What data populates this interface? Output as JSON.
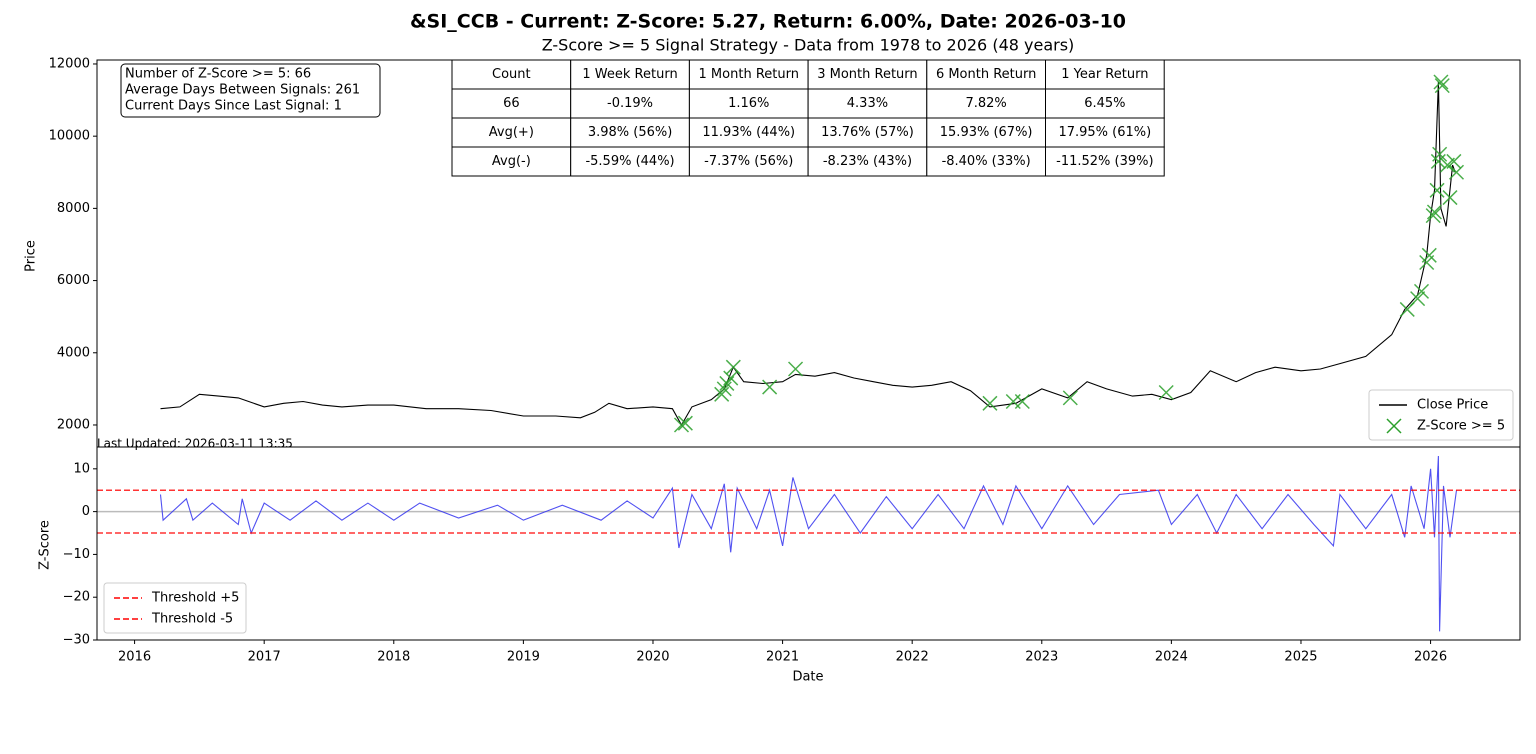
{
  "chart_data": [
    {
      "type": "line",
      "title": "&SI_CCB - Current: Z-Score: 5.27, Return: 6.00%, Date: 2026-03-10",
      "subtitle": "Z-Score >= 5 Signal Strategy - Data from 1978 to 2026 (48 years)",
      "ylabel": "Price",
      "xlim": [
        2015.71,
        2026.69
      ],
      "ylim": [
        1390,
        12110
      ],
      "yticks": [
        2000,
        4000,
        6000,
        8000,
        10000,
        12000
      ],
      "legend": "lower right",
      "annotation": [
        "Number of Z-Score >= 5: 66",
        "Average Days Between Signals: 261",
        "Current Days Since Last Signal: 1"
      ],
      "footnote": "Last Updated: 2026-03-11 13:35",
      "table": {
        "columns": [
          "Count",
          "1 Week Return",
          "1 Month Return",
          "3 Month Return",
          "6 Month Return",
          "1 Year Return"
        ],
        "rows": [
          [
            "66",
            "-0.19%",
            "1.16%",
            "4.33%",
            "7.82%",
            "6.45%"
          ],
          [
            "Avg(+)",
            "3.98% (56%)",
            "11.93% (44%)",
            "13.76% (57%)",
            "15.93% (67%)",
            "17.95% (61%)"
          ],
          [
            "Avg(-)",
            "-5.59% (44%)",
            "-7.37% (56%)",
            "-8.23% (43%)",
            "-8.40% (33%)",
            "-11.52% (39%)"
          ]
        ]
      },
      "series": [
        {
          "name": "Close Price",
          "type": "line",
          "color": "#000000",
          "x": [
            2016.2,
            2016.35,
            2016.5,
            2016.65,
            2016.8,
            2017.0,
            2017.15,
            2017.3,
            2017.45,
            2017.6,
            2017.8,
            2018.0,
            2018.25,
            2018.5,
            2018.75,
            2019.0,
            2019.25,
            2019.44,
            2019.55,
            2019.66,
            2019.8,
            2020.0,
            2020.15,
            2020.22,
            2020.3,
            2020.45,
            2020.55,
            2020.62,
            2020.7,
            2020.85,
            2021.0,
            2021.1,
            2021.25,
            2021.4,
            2021.55,
            2021.7,
            2021.85,
            2022.0,
            2022.15,
            2022.3,
            2022.45,
            2022.6,
            2022.8,
            2023.0,
            2023.2,
            2023.35,
            2023.5,
            2023.7,
            2023.85,
            2024.0,
            2024.15,
            2024.3,
            2024.5,
            2024.65,
            2024.8,
            2025.0,
            2025.15,
            2025.3,
            2025.5,
            2025.7,
            2025.8,
            2025.9,
            2025.97,
            2026.0,
            2026.03,
            2026.06,
            2026.08,
            2026.12,
            2026.17,
            2026.19
          ],
          "values": [
            2450,
            2500,
            2850,
            2800,
            2750,
            2500,
            2600,
            2650,
            2550,
            2500,
            2550,
            2550,
            2450,
            2450,
            2400,
            2250,
            2250,
            2200,
            2350,
            2600,
            2450,
            2500,
            2450,
            2000,
            2500,
            2700,
            3000,
            3600,
            3200,
            3150,
            3200,
            3400,
            3350,
            3450,
            3300,
            3200,
            3100,
            3050,
            3100,
            3200,
            2950,
            2500,
            2600,
            3000,
            2750,
            3200,
            3000,
            2800,
            2850,
            2700,
            2900,
            3500,
            3200,
            3450,
            3600,
            3500,
            3550,
            3700,
            3900,
            4500,
            5200,
            5600,
            6700,
            7800,
            8500,
            11500,
            8000,
            7500,
            9200,
            9000
          ]
        },
        {
          "name": "Z-Score >= 5",
          "type": "scatter",
          "color": "#2ca02c",
          "x": [
            2020.22,
            2020.25,
            2020.53,
            2020.55,
            2020.57,
            2020.6,
            2020.62,
            2020.9,
            2021.1,
            2022.6,
            2022.78,
            2022.85,
            2023.22,
            2023.96,
            2025.82,
            2025.9,
            2025.93,
            2025.97,
            2025.99,
            2026.02,
            2026.03,
            2026.05,
            2026.06,
            2026.07,
            2026.08,
            2026.09,
            2026.13,
            2026.15,
            2026.18,
            2026.2
          ],
          "values": [
            2000,
            2050,
            2850,
            3000,
            3150,
            3300,
            3600,
            3050,
            3550,
            2600,
            2650,
            2650,
            2750,
            2900,
            5200,
            5500,
            5700,
            6500,
            6700,
            7800,
            7900,
            8500,
            9300,
            9500,
            11500,
            11400,
            9200,
            8300,
            9300,
            9000
          ]
        }
      ]
    },
    {
      "type": "line",
      "xlabel": "Date",
      "ylabel": "Z-Score",
      "xlim": [
        2015.71,
        2026.69
      ],
      "xticks": [
        2016,
        2017,
        2018,
        2019,
        2020,
        2021,
        2022,
        2023,
        2024,
        2025,
        2026
      ],
      "ylim": [
        -30,
        15.1
      ],
      "yticks": [
        {
          "value": -30,
          "label": "−30"
        },
        {
          "value": -20,
          "label": "−20"
        },
        {
          "value": -10,
          "label": "−10"
        },
        0,
        10
      ],
      "baseline": 0,
      "legend": "lower left",
      "series": [
        {
          "type": "line",
          "color": "#3333ee",
          "x": [
            2016.2,
            2016.22,
            2016.4,
            2016.45,
            2016.6,
            2016.8,
            2016.83,
            2016.9,
            2017.0,
            2017.2,
            2017.4,
            2017.6,
            2017.8,
            2018.0,
            2018.2,
            2018.5,
            2018.8,
            2019.0,
            2019.3,
            2019.6,
            2019.8,
            2020.0,
            2020.15,
            2020.2,
            2020.3,
            2020.45,
            2020.55,
            2020.6,
            2020.65,
            2020.8,
            2020.9,
            2021.0,
            2021.08,
            2021.2,
            2021.4,
            2021.6,
            2021.8,
            2022.0,
            2022.2,
            2022.4,
            2022.55,
            2022.7,
            2022.8,
            2023.0,
            2023.2,
            2023.4,
            2023.6,
            2023.9,
            2024.0,
            2024.2,
            2024.35,
            2024.5,
            2024.7,
            2024.9,
            2025.1,
            2025.25,
            2025.3,
            2025.5,
            2025.7,
            2025.8,
            2025.85,
            2025.95,
            2026.0,
            2026.03,
            2026.06,
            2026.07,
            2026.1,
            2026.15,
            2026.2
          ],
          "values": [
            4,
            -2,
            3,
            -2,
            2,
            -3,
            3,
            -5,
            2,
            -2,
            2.5,
            -2,
            2,
            -2,
            2,
            -1.5,
            1.5,
            -2,
            1.5,
            -2,
            2.5,
            -1.5,
            5.5,
            -8.5,
            4,
            -4,
            6.5,
            -9.5,
            5.5,
            -4,
            5,
            -8,
            8,
            -4,
            4,
            -5,
            3.5,
            -4,
            4,
            -4,
            6,
            -3,
            6,
            -4,
            6,
            -3,
            4,
            5,
            -3,
            4,
            -5,
            4,
            -4,
            4,
            -3,
            -8,
            4,
            -4,
            4,
            -6,
            6,
            -4,
            10,
            -6,
            13,
            -28,
            6,
            -6,
            5
          ]
        },
        {
          "name": "Threshold +5",
          "type": "hline",
          "color": "#ff0000",
          "value": 5
        },
        {
          "name": "Threshold -5",
          "type": "hline",
          "color": "#ff0000",
          "value": -5
        }
      ]
    }
  ]
}
